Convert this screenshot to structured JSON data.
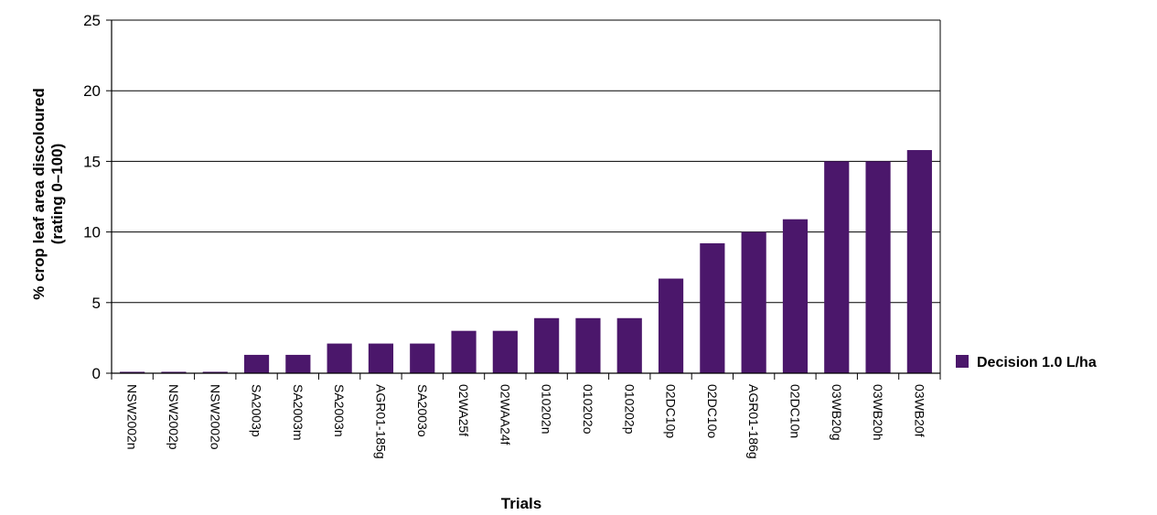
{
  "chart_data": {
    "type": "bar",
    "categories": [
      "NSW2002n",
      "NSW2002p",
      "NSW2002o",
      "SA2003p",
      "SA2003m",
      "SA2003n",
      "AGR01-185g",
      "SA2003o",
      "02WA25f",
      "02WAA24f",
      "010202n",
      "010202o",
      "010202p",
      "02DC10p",
      "02DC10o",
      "AGR01-186g",
      "02DC10n",
      "03WB20g",
      "03WB20h",
      "03WB20f"
    ],
    "series": [
      {
        "name": "Decision 1.0 L/ha",
        "values": [
          0.1,
          0.1,
          0.1,
          1.3,
          1.3,
          2.1,
          2.1,
          2.1,
          3.0,
          3.0,
          3.9,
          3.9,
          3.9,
          6.7,
          9.2,
          10.0,
          10.9,
          15.0,
          15.0,
          15.8
        ]
      }
    ],
    "xlabel": "Trials",
    "ylabel_lines": [
      "% crop leaf area discoloured",
      "(rating 0–100)"
    ],
    "ylim": [
      0,
      25
    ],
    "yticks": [
      0,
      5,
      10,
      15,
      20,
      25
    ],
    "grid": true,
    "legend_position": "right",
    "colors": {
      "bar": "#4b176b",
      "grid": "#000000",
      "axis": "#000000"
    }
  }
}
